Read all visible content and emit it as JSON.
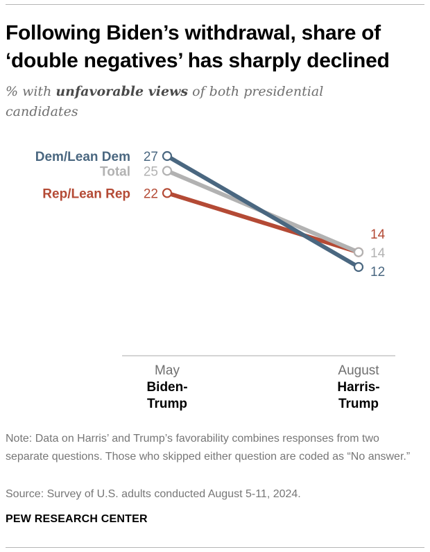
{
  "title": "Following Biden’s withdrawal, share of ‘double negatives’ has sharply declined",
  "subtitle": {
    "prefix": "% with ",
    "emphasis": "unfavorable views",
    "suffix": " of both presidential candidates"
  },
  "chart_data": {
    "type": "line",
    "x": [
      "May",
      "August"
    ],
    "x_sublabels": [
      [
        "Biden-",
        "Trump"
      ],
      [
        "Harris-",
        "Trump"
      ]
    ],
    "ylim": [
      0,
      30
    ],
    "grid": false,
    "series": [
      {
        "name": "Dem/Lean Dem",
        "values": [
          27,
          12
        ],
        "color": "#4a6780"
      },
      {
        "name": "Total",
        "values": [
          25,
          14
        ],
        "color": "#b2b2b2"
      },
      {
        "name": "Rep/Lean Rep",
        "values": [
          22,
          14
        ],
        "color": "#b44a35"
      }
    ]
  },
  "note": "Note: Data on Harris’ and Trump’s favorability combines responses from two separate questions. Those who skipped either question are coded as “No answer.”",
  "source": "Source: Survey of U.S. adults conducted August 5-11, 2024.",
  "brand": "PEW RESEARCH CENTER"
}
